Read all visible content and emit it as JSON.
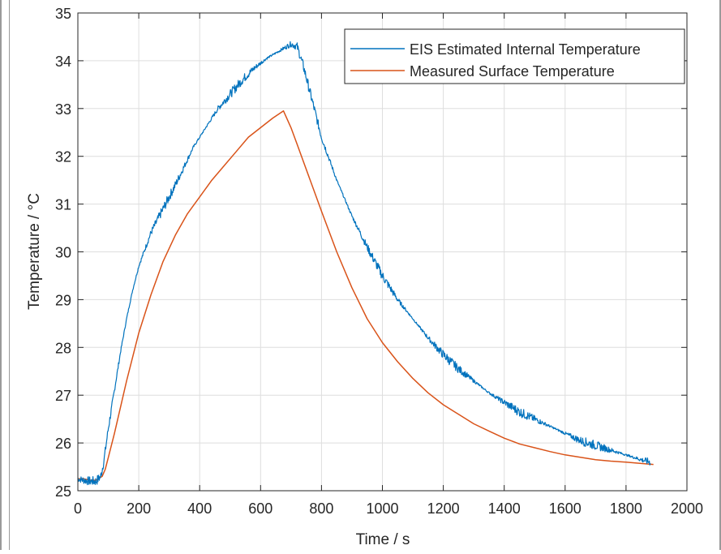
{
  "chart_data": {
    "type": "line",
    "title": "",
    "xlabel": "Time / s",
    "ylabel": "Temperature / °C",
    "xlim": [
      0,
      2000
    ],
    "ylim": [
      25,
      35
    ],
    "xticks": [
      0,
      200,
      400,
      600,
      800,
      1000,
      1200,
      1400,
      1600,
      1800,
      2000
    ],
    "yticks": [
      25,
      26,
      27,
      28,
      29,
      30,
      31,
      32,
      33,
      34,
      35
    ],
    "grid": true,
    "legend_position": "top-right",
    "series": [
      {
        "name": "EIS Estimated Internal Temperature",
        "color": "#0072BD",
        "noisy": true,
        "x": [
          0,
          20,
          40,
          60,
          75,
          85,
          100,
          120,
          140,
          160,
          180,
          200,
          240,
          280,
          320,
          350,
          380,
          420,
          460,
          500,
          540,
          580,
          620,
          660,
          700,
          720,
          740,
          760,
          780,
          800,
          850,
          900,
          950,
          1000,
          1050,
          1100,
          1150,
          1200,
          1250,
          1300,
          1350,
          1400,
          1450,
          1500,
          1550,
          1600,
          1650,
          1700,
          1750,
          1800,
          1850,
          1880
        ],
        "y": [
          25.25,
          25.22,
          25.2,
          25.2,
          25.3,
          25.6,
          26.3,
          27.1,
          27.9,
          28.6,
          29.2,
          29.7,
          30.4,
          30.9,
          31.4,
          31.8,
          32.2,
          32.6,
          33.0,
          33.3,
          33.6,
          33.85,
          34.05,
          34.2,
          34.35,
          34.3,
          33.9,
          33.4,
          32.9,
          32.4,
          31.5,
          30.75,
          30.1,
          29.5,
          29.0,
          28.6,
          28.2,
          27.85,
          27.55,
          27.3,
          27.05,
          26.85,
          26.65,
          26.5,
          26.35,
          26.2,
          26.05,
          25.95,
          25.85,
          25.75,
          25.65,
          25.6
        ]
      },
      {
        "name": "Measured Surface Temperature",
        "color": "#D95319",
        "noisy": false,
        "x": [
          0,
          20,
          40,
          60,
          80,
          90,
          100,
          120,
          140,
          160,
          180,
          200,
          240,
          280,
          320,
          360,
          400,
          440,
          480,
          520,
          560,
          600,
          640,
          675,
          700,
          720,
          740,
          760,
          780,
          800,
          850,
          900,
          950,
          1000,
          1050,
          1100,
          1150,
          1200,
          1250,
          1300,
          1350,
          1400,
          1450,
          1500,
          1550,
          1600,
          1650,
          1700,
          1750,
          1800,
          1850,
          1890
        ],
        "y": [
          25.25,
          25.25,
          25.22,
          25.22,
          25.3,
          25.45,
          25.7,
          26.2,
          26.75,
          27.3,
          27.8,
          28.3,
          29.1,
          29.8,
          30.35,
          30.8,
          31.15,
          31.5,
          31.8,
          32.1,
          32.4,
          32.6,
          32.8,
          32.95,
          32.6,
          32.25,
          31.9,
          31.55,
          31.2,
          30.85,
          30.0,
          29.25,
          28.6,
          28.1,
          27.7,
          27.35,
          27.05,
          26.8,
          26.6,
          26.4,
          26.25,
          26.1,
          25.98,
          25.9,
          25.82,
          25.75,
          25.7,
          25.65,
          25.62,
          25.6,
          25.57,
          25.55
        ]
      }
    ],
    "annotations": []
  }
}
